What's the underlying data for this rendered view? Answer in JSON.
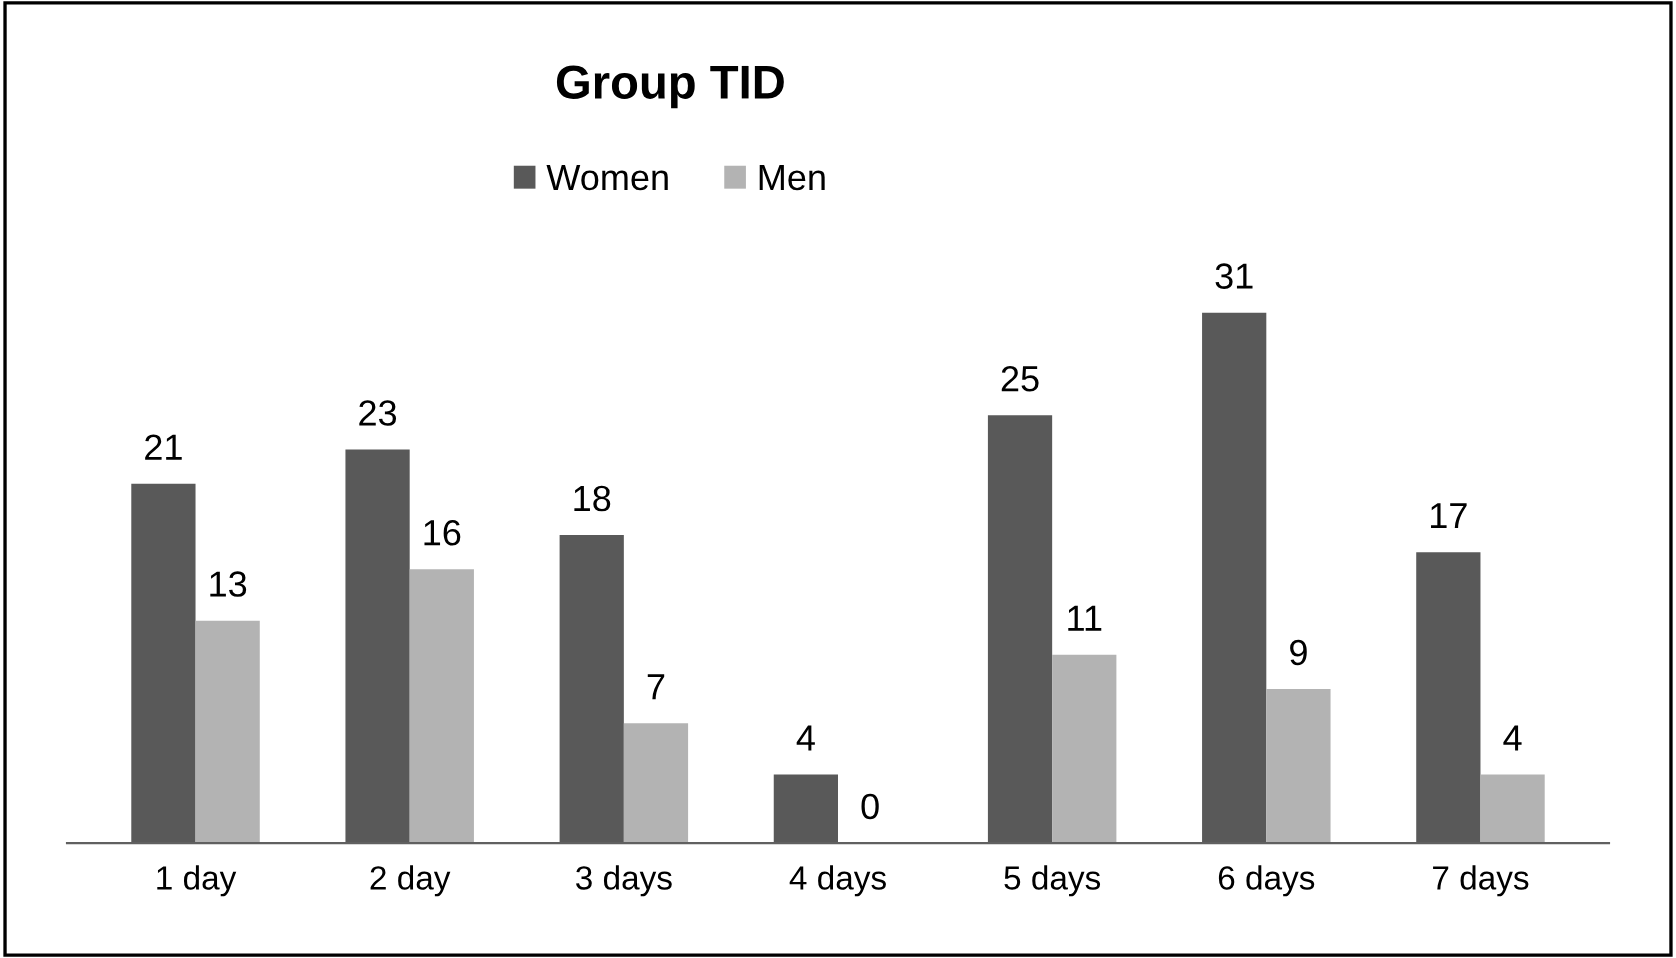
{
  "chart_data": {
    "type": "bar",
    "title": "Group TID",
    "categories": [
      "1 day",
      "2 day",
      "3 days",
      "4 days",
      "5 days",
      "6 days",
      "7 days"
    ],
    "series": [
      {
        "name": "Women",
        "color": "#595959",
        "values": [
          21,
          23,
          18,
          4,
          25,
          31,
          17
        ]
      },
      {
        "name": "Men",
        "color": "#b3b3b3",
        "values": [
          13,
          16,
          7,
          0,
          11,
          9,
          4
        ]
      }
    ],
    "data_labels": true,
    "legend": "top",
    "grid": false,
    "tick_labels": "x"
  }
}
